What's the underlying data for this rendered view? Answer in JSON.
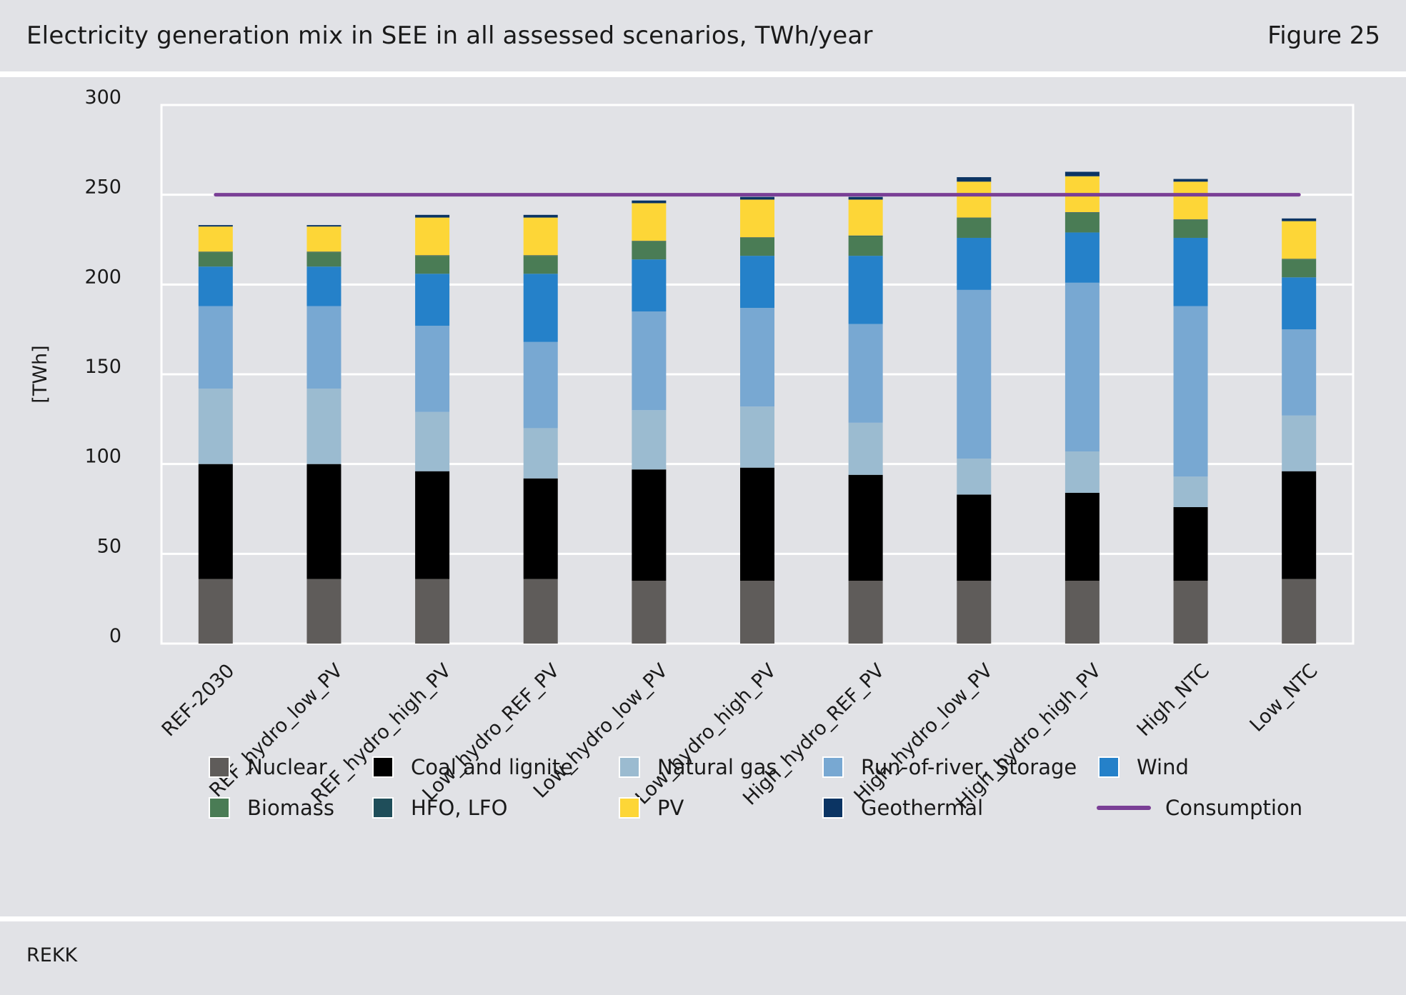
{
  "header": {
    "title": "Electricity generation mix in SEE in all assessed scenarios, TWh/year",
    "figure_label": "Figure 25"
  },
  "footer": {
    "source": "REKK"
  },
  "colors": {
    "Nuclear": "#5f5c5a",
    "Coal and lignite": "#000000",
    "Natural gas": "#9bbbd0",
    "Run-of-river, Storage": "#78a8d2",
    "Wind": "#2581c9",
    "Biomass": "#4a7c55",
    "HFO, LFO": "#1f4e5a",
    "PV": "#fdd637",
    "Geothermal": "#0b3463",
    "Consumption": "#7a3f96"
  },
  "legend": {
    "items": [
      {
        "label": "Nuclear",
        "kind": "box"
      },
      {
        "label": "Coal and lignite",
        "kind": "box"
      },
      {
        "label": "Natural gas",
        "kind": "box"
      },
      {
        "label": "Run-of-river, Storage",
        "kind": "box"
      },
      {
        "label": "Wind",
        "kind": "box"
      },
      {
        "label": "Biomass",
        "kind": "box"
      },
      {
        "label": "HFO, LFO",
        "kind": "box"
      },
      {
        "label": "PV",
        "kind": "box"
      },
      {
        "label": "Geothermal",
        "kind": "box"
      },
      {
        "label": "Consumption",
        "kind": "line"
      }
    ]
  },
  "chart_data": {
    "type": "bar",
    "stacked": true,
    "title": "Electricity generation mix in SEE in all assessed scenarios, TWh/year",
    "xlabel": "",
    "ylabel": "[TWh]",
    "ylim": [
      0,
      300
    ],
    "yticks": [
      0,
      50,
      100,
      150,
      200,
      250,
      300
    ],
    "grid": true,
    "legend_position": "bottom",
    "categories": [
      "REF-2030",
      "REF_hydro_low_PV",
      "REF_hydro_high_PV",
      "Low_hydro_REF_PV",
      "Low_hydro_low_PV",
      "Low_hydro_high_PV",
      "High_hydro_REF_PV",
      "High_hydro_low_PV",
      "High_hydro_high_PV",
      "High_NTC",
      "Low_NTC"
    ],
    "series": [
      {
        "name": "Nuclear",
        "values": [
          36,
          36,
          36,
          36,
          35,
          35,
          35,
          35,
          35,
          35,
          36
        ]
      },
      {
        "name": "Coal and lignite",
        "values": [
          64,
          64,
          60,
          56,
          62,
          63,
          59,
          48,
          49,
          41,
          60
        ]
      },
      {
        "name": "Natural gas",
        "values": [
          42,
          42,
          33,
          28,
          33,
          34,
          29,
          20,
          23,
          17,
          31
        ]
      },
      {
        "name": "Run-of-river, Storage",
        "values": [
          46,
          46,
          48,
          48,
          55,
          55,
          55,
          94,
          94,
          95,
          48
        ]
      },
      {
        "name": "Wind",
        "values": [
          22,
          22,
          29,
          38,
          29,
          29,
          38,
          29,
          28,
          38,
          29
        ]
      },
      {
        "name": "Biomass",
        "values": [
          8,
          8,
          10,
          10,
          10,
          10,
          11,
          11,
          11,
          10,
          10
        ]
      },
      {
        "name": "HFO, LFO",
        "values": [
          0.3,
          0.3,
          0.3,
          0.3,
          0.3,
          0.3,
          0.3,
          0.3,
          0.3,
          0.3,
          0.3
        ]
      },
      {
        "name": "PV",
        "values": [
          14,
          14,
          21,
          21,
          21,
          21,
          20,
          20,
          20,
          21,
          21
        ]
      },
      {
        "name": "Geothermal",
        "values": [
          0.8,
          0.8,
          1.5,
          1.5,
          1.5,
          1.5,
          1.5,
          2.5,
          2.5,
          1.5,
          1.5
        ]
      }
    ],
    "line_series": {
      "name": "Consumption",
      "value": 250,
      "from": "REF-2030",
      "to": "Low_NTC"
    }
  }
}
